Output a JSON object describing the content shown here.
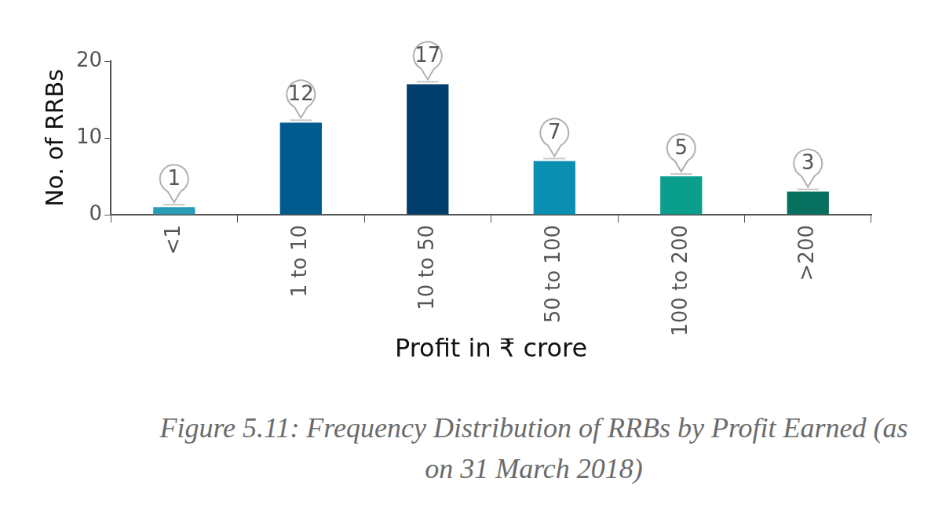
{
  "chart_data": {
    "type": "bar",
    "title": "Figure 5.11: Frequency Distribution of RRBs by Profit Earned (as on 31 March 2018)",
    "x_label": "Profit in ₹ crore",
    "y_label": "No. of RRBs",
    "categories": [
      "<1",
      "1 to 10",
      "10 to 50",
      "50 to 100",
      "100 to 200",
      ">200"
    ],
    "values": [
      1,
      12,
      17,
      7,
      5,
      3
    ],
    "colors": [
      "#2a9cb8",
      "#005b8e",
      "#003f6b",
      "#0a8fb2",
      "#0a9e8c",
      "#08705f"
    ],
    "ylim": [
      0,
      20
    ],
    "yticks": [
      0,
      10,
      20
    ],
    "grid": false,
    "data_labels": true
  }
}
